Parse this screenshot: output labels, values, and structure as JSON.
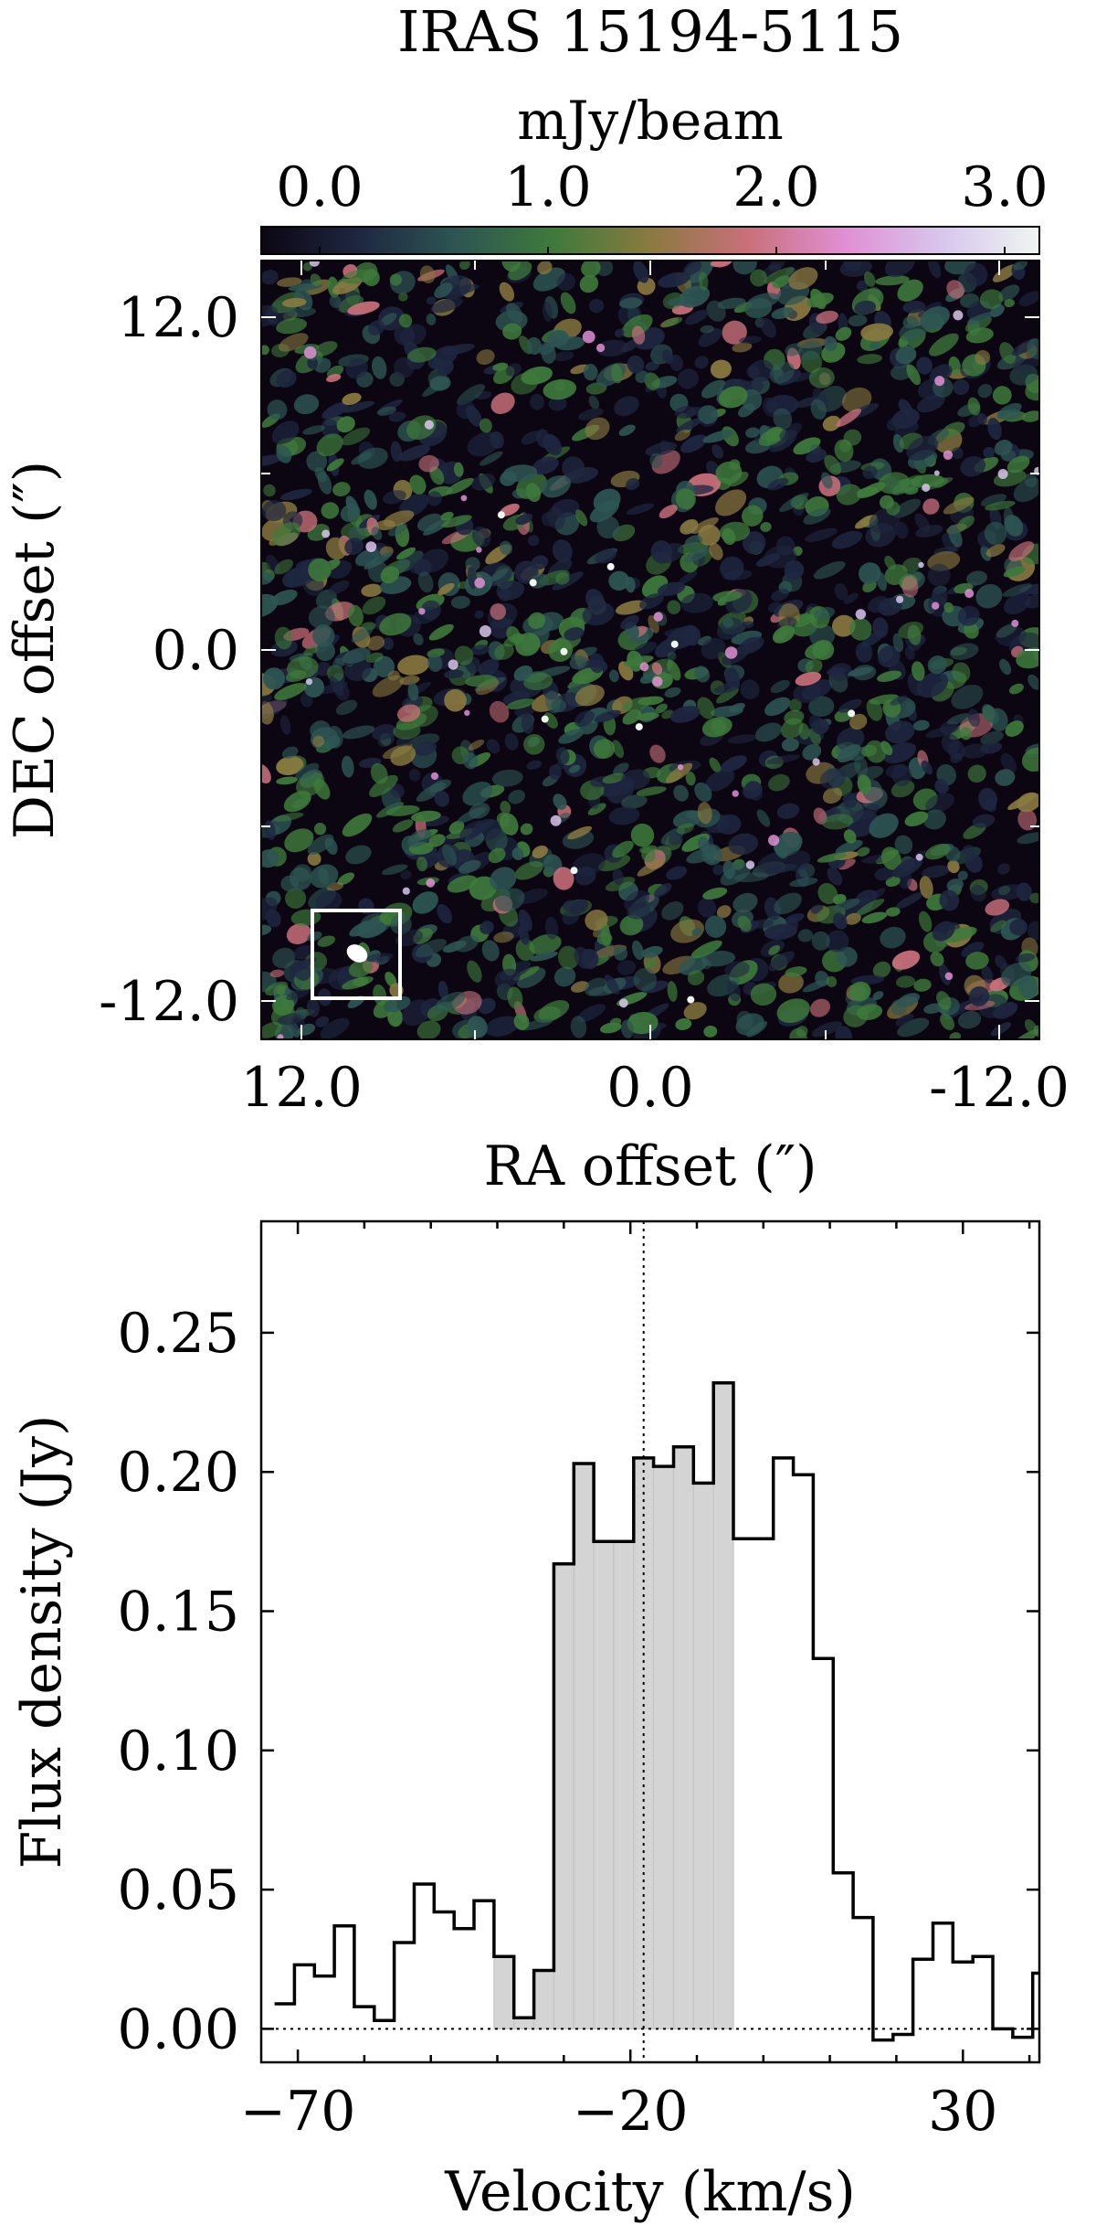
{
  "chart_data": [
    {
      "type": "heatmap",
      "title": "IRAS 15194-5115",
      "colorbar": {
        "label": "mJy/beam",
        "ticks": [
          "0.0",
          "1.0",
          "2.0",
          "3.0"
        ],
        "range": [
          -0.3,
          3.1
        ],
        "colors": [
          "#0c0612",
          "#1e2740",
          "#2d5553",
          "#3e7a3b",
          "#8a7a40",
          "#c9707a",
          "#e08fd4",
          "#d8c6ec",
          "#eef6f1"
        ]
      },
      "xlabel": "RA offset (″)",
      "ylabel": "DEC offset (″)",
      "xticks": [
        "12.0",
        "0.0",
        "-12.0"
      ],
      "yticks": [
        "12.0",
        "0.0",
        "-12.0"
      ],
      "xlim": [
        13.0,
        -13.0
      ],
      "ylim": [
        -13.0,
        13.0
      ],
      "beam": {
        "x": 9.8,
        "y": -10.3,
        "major": 0.8,
        "minor": 0.6,
        "angle_deg": 30
      },
      "beam_box": {
        "x0": 11.7,
        "x1": 8.7,
        "y0": -11.7,
        "y1": -8.7
      }
    },
    {
      "type": "step",
      "xlabel": "Velocity (km/s)",
      "ylabel": "Flux density (Jy)",
      "xticks": [
        "−70",
        "−20",
        "30"
      ],
      "yticks": [
        "0.00",
        "0.05",
        "0.10",
        "0.15",
        "0.20",
        "0.25"
      ],
      "xlim": [
        -75.5,
        41.5
      ],
      "ylim": [
        -0.012,
        0.29
      ],
      "channel_width": 3,
      "x": [
        -72,
        -69,
        -66,
        -63,
        -60,
        -57,
        -54,
        -51,
        -48,
        -45,
        -42,
        -39,
        -36,
        -33,
        -30,
        -27,
        -24,
        -21,
        -18,
        -15,
        -12,
        -9,
        -6,
        -3,
        0,
        3,
        6,
        9,
        12,
        15,
        18,
        21,
        24,
        27,
        30,
        33,
        36,
        39,
        42
      ],
      "values": [
        0.009,
        0.023,
        0.019,
        0.037,
        0.008,
        0.003,
        0.031,
        0.052,
        0.042,
        0.036,
        0.046,
        0.026,
        0.004,
        0.021,
        0.167,
        0.203,
        0.175,
        0.175,
        0.205,
        0.202,
        0.209,
        0.196,
        0.232,
        0.176,
        0.176,
        0.205,
        0.199,
        0.133,
        0.056,
        0.04,
        -0.004,
        -0.002,
        0.025,
        0.038,
        0.024,
        0.026,
        0.0,
        -0.003,
        0.02
      ],
      "shaded_range": [
        -42.5,
        -3.5
      ],
      "vline": -18,
      "hline": 0.0
    }
  ]
}
